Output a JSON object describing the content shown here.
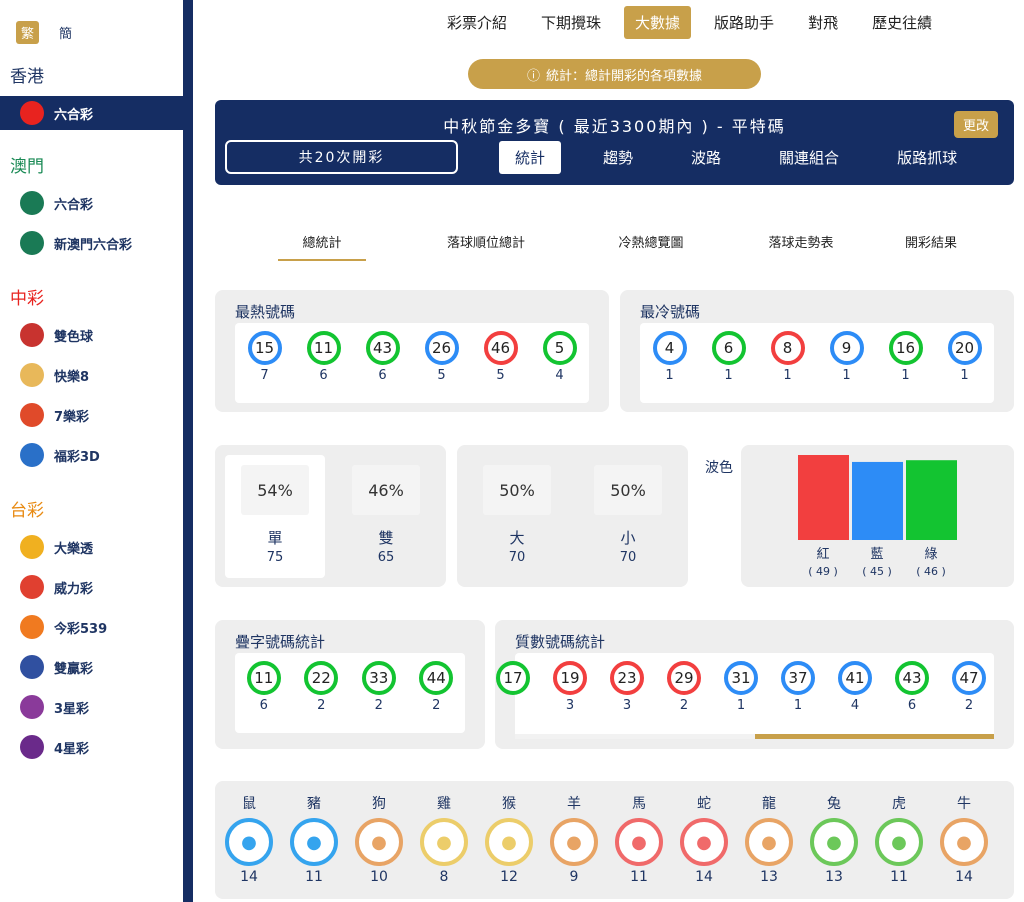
{
  "colors": {
    "navy": "#152d63",
    "gold": "#c8a04a",
    "red": "#f23f3f",
    "blue": "#2d8cf6",
    "green": "#13c431"
  },
  "sidebar": {
    "lang": {
      "trad": "繁",
      "simp": "簡"
    },
    "regions": [
      {
        "name": "香港",
        "color": "#1f3563",
        "items": [
          {
            "label": "六合彩",
            "icon": "hk-flag-icon",
            "active": true
          }
        ]
      },
      {
        "name": "澳門",
        "color": "#1a8a55",
        "items": [
          {
            "label": "六合彩",
            "icon": "macau-flag-icon"
          },
          {
            "label": "新澳門六合彩",
            "icon": "macau-new-icon"
          }
        ]
      },
      {
        "name": "中彩",
        "color": "#e8231f",
        "items": [
          {
            "label": "雙色球",
            "icon": "double-color-icon"
          },
          {
            "label": "快樂8",
            "icon": "happy8-icon"
          },
          {
            "label": "7樂彩",
            "icon": "7lecai-icon"
          },
          {
            "label": "福彩3D",
            "icon": "fucai3d-icon"
          }
        ]
      },
      {
        "name": "台彩",
        "color": "#e88a12",
        "items": [
          {
            "label": "大樂透",
            "icon": "lotto-icon"
          },
          {
            "label": "威力彩",
            "icon": "power-icon"
          },
          {
            "label": "今彩539",
            "icon": "539-icon"
          },
          {
            "label": "雙贏彩",
            "icon": "double-win-icon"
          },
          {
            "label": "3星彩",
            "icon": "3star-icon"
          },
          {
            "label": "4星彩",
            "icon": "4star-icon"
          }
        ]
      }
    ]
  },
  "topnav": [
    {
      "label": "彩票介紹"
    },
    {
      "label": "下期攪珠"
    },
    {
      "label": "大數據",
      "active": true
    },
    {
      "label": "版路助手"
    },
    {
      "label": "對飛"
    },
    {
      "label": "歷史往績"
    }
  ],
  "pill": "統計：總計開彩的各項數據",
  "header": {
    "title": "中秋節金多寶 ( 最近3300期內 ) - 平特碼",
    "change": "更改",
    "count": "共20次開彩",
    "tabs": [
      "統計",
      "趨勢",
      "波路",
      "關連組合",
      "版路抓球"
    ]
  },
  "subtabs": [
    "總統計",
    "落球順位總計",
    "冷熱總覽圖",
    "落球走勢表",
    "開彩結果"
  ],
  "hot": {
    "title": "最熱號碼",
    "balls": [
      {
        "n": "15",
        "c": "blue",
        "v": "7"
      },
      {
        "n": "11",
        "c": "green",
        "v": "6"
      },
      {
        "n": "43",
        "c": "green",
        "v": "6"
      },
      {
        "n": "26",
        "c": "blue",
        "v": "5"
      },
      {
        "n": "46",
        "c": "red",
        "v": "5"
      },
      {
        "n": "5",
        "c": "green",
        "v": "4"
      }
    ]
  },
  "cold": {
    "title": "最冷號碼",
    "balls": [
      {
        "n": "4",
        "c": "blue",
        "v": "1"
      },
      {
        "n": "6",
        "c": "green",
        "v": "1"
      },
      {
        "n": "8",
        "c": "red",
        "v": "1"
      },
      {
        "n": "9",
        "c": "blue",
        "v": "1"
      },
      {
        "n": "16",
        "c": "green",
        "v": "1"
      },
      {
        "n": "20",
        "c": "blue",
        "v": "1"
      }
    ]
  },
  "oddeven": [
    {
      "pct": "54%",
      "label": "單",
      "num": "75"
    },
    {
      "pct": "46%",
      "label": "雙",
      "num": "65"
    }
  ],
  "bigsmall": [
    {
      "pct": "50%",
      "label": "大",
      "num": "70"
    },
    {
      "pct": "50%",
      "label": "小",
      "num": "70"
    }
  ],
  "wave": {
    "title": "波色",
    "bars": [
      {
        "label": "紅",
        "count": "( 49 )",
        "value": 49,
        "c": "red"
      },
      {
        "label": "藍",
        "count": "( 45 )",
        "value": 45,
        "c": "blue"
      },
      {
        "label": "綠",
        "count": "( 46 )",
        "value": 46,
        "c": "green"
      }
    ]
  },
  "double": {
    "title": "疊字號碼統計",
    "balls": [
      {
        "n": "11",
        "c": "green",
        "v": "6"
      },
      {
        "n": "22",
        "c": "green",
        "v": "2"
      },
      {
        "n": "33",
        "c": "green",
        "v": "2"
      },
      {
        "n": "44",
        "c": "green",
        "v": "2"
      }
    ]
  },
  "prime": {
    "title": "質數號碼統計",
    "scroll_position": 0.5,
    "balls": [
      {
        "n": "17",
        "c": "green",
        "v": ""
      },
      {
        "n": "19",
        "c": "red",
        "v": "3"
      },
      {
        "n": "23",
        "c": "red",
        "v": "3"
      },
      {
        "n": "29",
        "c": "red",
        "v": "2"
      },
      {
        "n": "31",
        "c": "blue",
        "v": "1"
      },
      {
        "n": "37",
        "c": "blue",
        "v": "1"
      },
      {
        "n": "41",
        "c": "blue",
        "v": "4"
      },
      {
        "n": "43",
        "c": "green",
        "v": "6"
      },
      {
        "n": "47",
        "c": "blue",
        "v": "2"
      }
    ]
  },
  "zodiac": [
    {
      "name": "鼠",
      "v": "14",
      "c": "#35a4ee"
    },
    {
      "name": "豬",
      "v": "11",
      "c": "#35a4ee"
    },
    {
      "name": "狗",
      "v": "10",
      "c": "#e8a465"
    },
    {
      "name": "雞",
      "v": "8",
      "c": "#eccd6a"
    },
    {
      "name": "猴",
      "v": "12",
      "c": "#eccd6a"
    },
    {
      "name": "羊",
      "v": "9",
      "c": "#e8a465"
    },
    {
      "name": "馬",
      "v": "11",
      "c": "#f06a6a"
    },
    {
      "name": "蛇",
      "v": "14",
      "c": "#f06a6a"
    },
    {
      "name": "龍",
      "v": "13",
      "c": "#e8a465"
    },
    {
      "name": "兔",
      "v": "13",
      "c": "#6cc85a"
    },
    {
      "name": "虎",
      "v": "11",
      "c": "#6cc85a"
    },
    {
      "name": "牛",
      "v": "14",
      "c": "#e8a465"
    }
  ]
}
